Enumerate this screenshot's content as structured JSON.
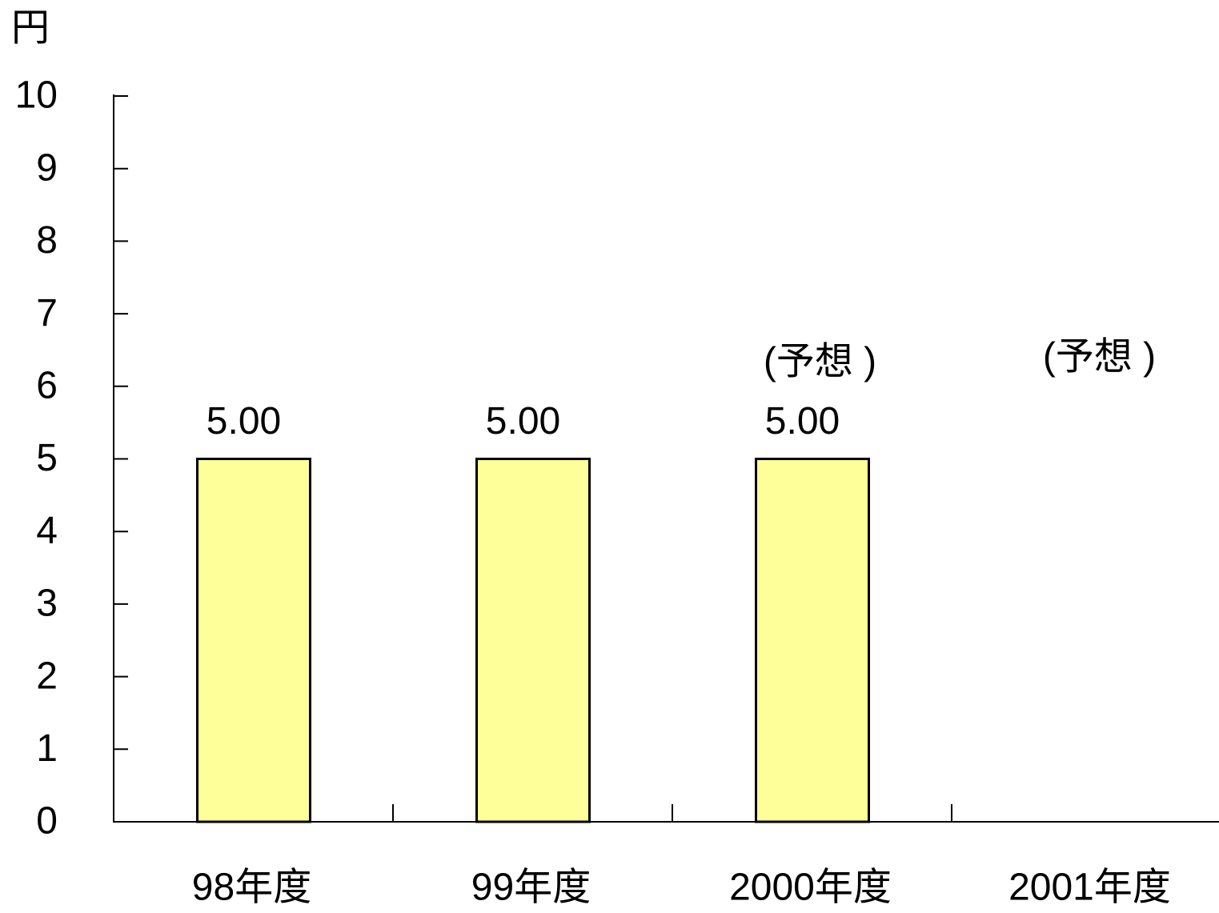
{
  "chart_data": {
    "type": "bar",
    "y_label": "円",
    "categories": [
      "98年度",
      "99年度",
      "2000年度",
      "2001年度"
    ],
    "values": [
      5,
      5,
      5,
      null
    ],
    "value_labels": [
      "5.00",
      "5.00",
      "5.00",
      null
    ],
    "annotations": [
      null,
      null,
      "(予想 )",
      "(予想 )"
    ],
    "color": "#ffff99",
    "ylim": [
      0,
      10
    ],
    "yticks": [
      0,
      1,
      2,
      3,
      4,
      5,
      6,
      7,
      8,
      9,
      10
    ]
  }
}
